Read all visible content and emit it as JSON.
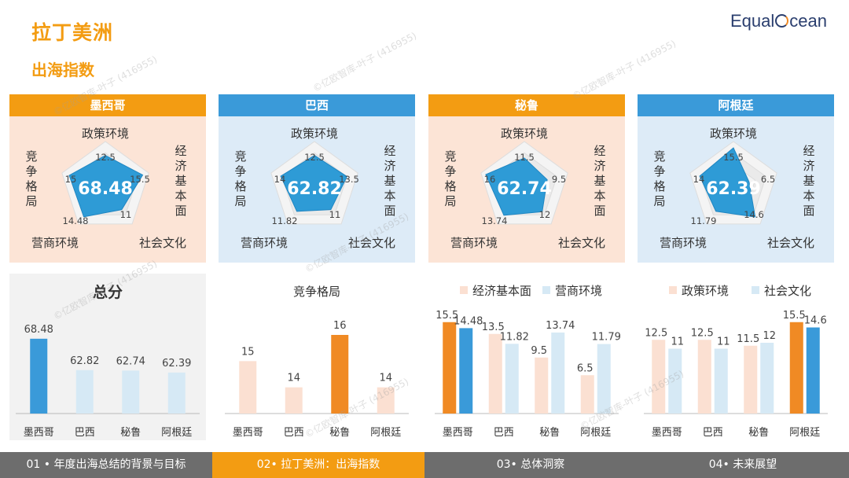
{
  "header": {
    "title": "拉丁美洲",
    "subtitle": "出海指数",
    "logo_prefix": "Equal",
    "logo_suffix": "cean"
  },
  "colors": {
    "orange": "#F39C12",
    "orange_bar": "#F08A24",
    "blue": "#3A9AD9",
    "light_orange": "#FBE0D2",
    "light_blue": "#D6E9F5",
    "panel_bg_orange": "#FCE4D6",
    "panel_bg_blue": "#DDEBF7",
    "footer_gray": "#6D6D6D"
  },
  "radar_axes": [
    "政策环境",
    "经济基本面",
    "社会文化",
    "营商环境",
    "竞争格局"
  ],
  "countries": [
    {
      "name": "墨西哥",
      "total": "68.48",
      "values": [
        12.5,
        15.5,
        11,
        14.48,
        15
      ],
      "labels": [
        "12.5",
        "15.5",
        "11",
        "14.48",
        "15"
      ],
      "theme": "orange"
    },
    {
      "name": "巴西",
      "total": "62.82",
      "values": [
        12.5,
        13.5,
        11,
        11.82,
        14
      ],
      "labels": [
        "12.5",
        "13.5",
        "11",
        "11.82",
        "14"
      ],
      "theme": "blue"
    },
    {
      "name": "秘鲁",
      "total": "62.74",
      "values": [
        11.5,
        9.5,
        12,
        13.74,
        16
      ],
      "labels": [
        "11.5",
        "9.5",
        "12",
        "13.74",
        "16"
      ],
      "theme": "orange"
    },
    {
      "name": "阿根廷",
      "total": "62.39",
      "values": [
        15.5,
        6.5,
        14.6,
        11.79,
        14
      ],
      "labels": [
        "15.5",
        "6.5",
        "14.6",
        "11.79",
        "14"
      ],
      "theme": "blue"
    }
  ],
  "chart_data": [
    {
      "type": "bar",
      "title": "总分",
      "categories": [
        "墨西哥",
        "巴西",
        "秘鲁",
        "阿根廷"
      ],
      "values": [
        68.48,
        62.82,
        62.74,
        62.39
      ],
      "labels": [
        "68.48",
        "62.82",
        "62.74",
        "62.39"
      ],
      "ylim": [
        55,
        72
      ]
    },
    {
      "type": "bar",
      "title": "竞争格局",
      "categories": [
        "墨西哥",
        "巴西",
        "秘鲁",
        "阿根廷"
      ],
      "values": [
        15,
        14,
        16,
        14
      ],
      "labels": [
        "15",
        "14",
        "16",
        "14"
      ],
      "ylim": [
        13,
        16.6
      ]
    },
    {
      "type": "bar",
      "categories": [
        "墨西哥",
        "巴西",
        "秘鲁",
        "阿根廷"
      ],
      "series": [
        {
          "name": "经济基本面",
          "values": [
            15.5,
            13.5,
            9.5,
            6.5
          ],
          "labels": [
            "15.5",
            "13.5",
            "9.5",
            "6.5"
          ]
        },
        {
          "name": "营商环境",
          "values": [
            14.48,
            11.82,
            13.74,
            11.79
          ],
          "labels": [
            "14.48",
            "11.82",
            "13.74",
            "11.79"
          ]
        }
      ],
      "ylim": [
        0,
        16
      ]
    },
    {
      "type": "bar",
      "categories": [
        "墨西哥",
        "巴西",
        "秘鲁",
        "阿根廷"
      ],
      "series": [
        {
          "name": "政策环境",
          "values": [
            12.5,
            12.5,
            11.5,
            15.5
          ],
          "labels": [
            "12.5",
            "12.5",
            "11.5",
            "15.5"
          ]
        },
        {
          "name": "社会文化",
          "values": [
            11,
            11,
            12,
            14.6
          ],
          "labels": [
            "11",
            "11",
            "12",
            "14.6"
          ]
        }
      ],
      "ylim": [
        0,
        16
      ]
    }
  ],
  "footer": {
    "tabs": [
      {
        "label": "01 • 年度出海总结的背景与目标",
        "active": false
      },
      {
        "label": "02• 拉丁美洲：出海指数",
        "active": true
      },
      {
        "label": "03• 总体洞察",
        "active": false
      },
      {
        "label": "04• 未来展望",
        "active": false
      }
    ]
  }
}
